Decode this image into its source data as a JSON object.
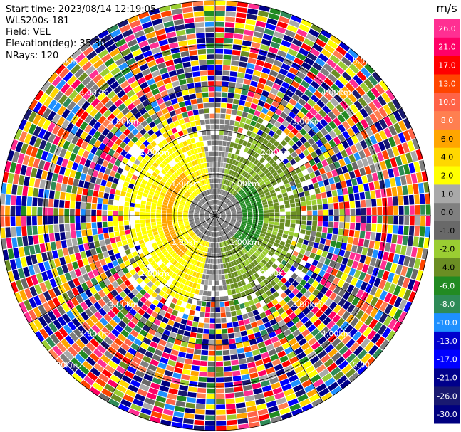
{
  "header": {
    "start_time": "Start time: 2023/08/14 12:19:05",
    "instrument": "WLS200s-181",
    "field": "Field: VEL",
    "elevation": "Elevation(deg): 35.30",
    "nrays": "NRays: 120"
  },
  "colorbar": {
    "unit": "m/s",
    "ticks": [
      "26.0",
      "21.0",
      "17.0",
      "13.0",
      "10.0",
      "8.0",
      "6.0",
      "4.0",
      "2.0",
      "1.0",
      "0.0",
      "-1.0",
      "-2.0",
      "-4.0",
      "-6.0",
      "-8.0",
      "-10.0",
      "-13.0",
      "-17.0",
      "-21.0",
      "-26.0",
      "-30.0"
    ],
    "colors": [
      "#ff2f92",
      "#ff0066",
      "#ff0000",
      "#ff4500",
      "#ff6347",
      "#ff7f50",
      "#ffa500",
      "#ffd700",
      "#ffff00",
      "#a9a9a9",
      "#808080",
      "#696969",
      "#9acd32",
      "#6b8e23",
      "#228b22",
      "#2e8b57",
      "#1e90ff",
      "#0000cd",
      "#0000ff",
      "#00008b",
      "#191970",
      "#000080"
    ]
  },
  "radar": {
    "range_labels": [
      "1.00km",
      "2.00km",
      "3.00km",
      "4.00km",
      "5.00km"
    ],
    "range_label_positions": [
      "1.00km",
      "2.00km",
      "3.00km",
      "4.00km",
      "5.00km"
    ]
  }
}
